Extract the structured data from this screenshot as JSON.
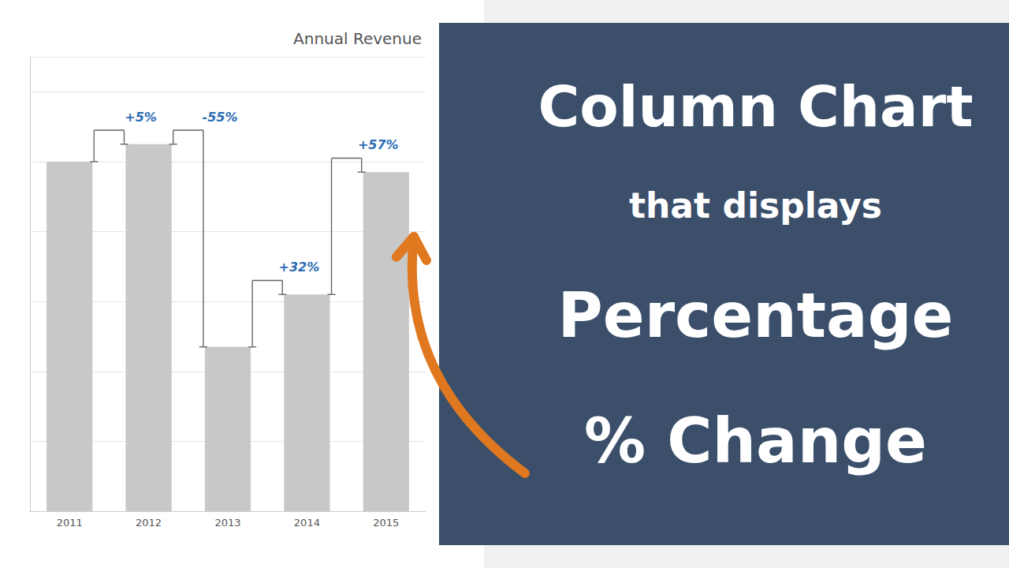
{
  "chart_data": {
    "type": "bar",
    "title": "Annual Revenue",
    "categories": [
      "2011",
      "2012",
      "2013",
      "2014",
      "2015"
    ],
    "values": [
      100,
      105,
      47,
      62,
      97
    ],
    "color": "#c8c8c8",
    "ylim": [
      0,
      130
    ],
    "yticks": [
      0,
      20,
      40,
      60,
      80,
      100,
      120
    ],
    "grid": true,
    "tick_labels": "x",
    "annotations": [
      {
        "x": "2012",
        "text": "+5%"
      },
      {
        "x": "2013",
        "text": "-55%"
      },
      {
        "x": "2014",
        "text": "+32%"
      },
      {
        "x": "2015",
        "text": "+57%"
      },
      {
        "text": "Column Chart"
      },
      {
        "text": "that displays"
      },
      {
        "text": "Percentage"
      },
      {
        "text": "% Change"
      }
    ]
  }
}
